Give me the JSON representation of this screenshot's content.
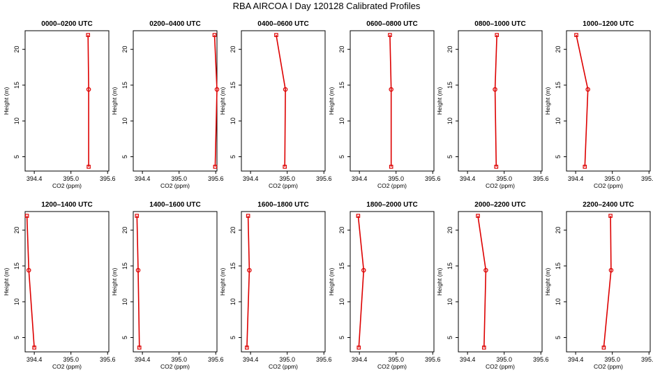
{
  "title": "RBA AIRCOA I  Day 120128  Calibrated Profiles",
  "colors": {
    "series": "#dd0000",
    "axis": "#000000"
  },
  "chart_data": {
    "type": "line",
    "xlabel": "CO2 (ppm)",
    "ylabel": "Height (m)",
    "xlim": [
      394.25,
      395.62
    ],
    "ylim": [
      3.0,
      22.6
    ],
    "xticks": [
      394.4,
      395.0,
      395.6
    ],
    "xtick_labels": [
      "394.4",
      "395.0",
      "395.6"
    ],
    "yticks": [
      5,
      10,
      15,
      20
    ],
    "ytick_labels": [
      "5",
      "10",
      "15",
      "20"
    ],
    "heights": [
      22,
      14.4,
      3.6
    ],
    "panels": [
      {
        "title": "0000–0200 UTC",
        "values": [
          395.28,
          395.29,
          395.29
        ]
      },
      {
        "title": "0200–0400 UTC",
        "values": [
          395.58,
          395.62,
          395.59
        ]
      },
      {
        "title": "0400–0600 UTC",
        "values": [
          394.82,
          394.97,
          394.96
        ]
      },
      {
        "title": "0600–0800 UTC",
        "values": [
          394.9,
          394.92,
          394.92
        ]
      },
      {
        "title": "0800–1000 UTC",
        "values": [
          394.88,
          394.85,
          394.87
        ]
      },
      {
        "title": "1000–1200 UTC",
        "values": [
          394.41,
          394.6,
          394.55
        ]
      },
      {
        "title": "1200–1400 UTC",
        "values": [
          394.28,
          394.31,
          394.4
        ]
      },
      {
        "title": "1400–1600 UTC",
        "values": [
          394.31,
          394.33,
          394.35
        ]
      },
      {
        "title": "1600–1800 UTC",
        "values": [
          394.36,
          394.38,
          394.34
        ]
      },
      {
        "title": "1800–2000 UTC",
        "values": [
          394.38,
          394.47,
          394.39
        ]
      },
      {
        "title": "2000–2200 UTC",
        "values": [
          394.57,
          394.7,
          394.67
        ]
      },
      {
        "title": "2200–2400 UTC",
        "values": [
          394.97,
          394.98,
          394.86
        ]
      }
    ]
  }
}
